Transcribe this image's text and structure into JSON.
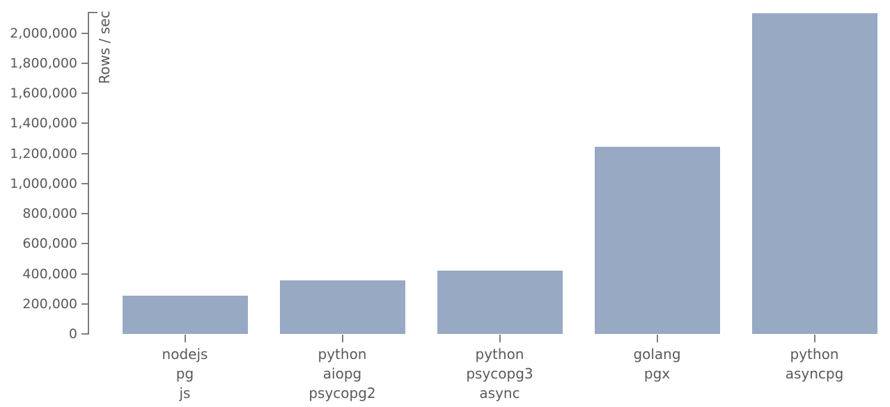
{
  "chart_data": {
    "type": "bar",
    "title": "",
    "xlabel": "",
    "ylabel": "Rows / sec",
    "grid": false,
    "legend": false,
    "ylim": [
      0,
      2141000
    ],
    "yticks": [
      {
        "value": 0,
        "label": "0"
      },
      {
        "value": 200000,
        "label": "200,000"
      },
      {
        "value": 400000,
        "label": "400,000"
      },
      {
        "value": 600000,
        "label": "600,000"
      },
      {
        "value": 800000,
        "label": "800,000"
      },
      {
        "value": 1000000,
        "label": "1,000,000"
      },
      {
        "value": 1200000,
        "label": "1,200,000"
      },
      {
        "value": 1400000,
        "label": "1,400,000"
      },
      {
        "value": 1600000,
        "label": "1,600,000"
      },
      {
        "value": 1800000,
        "label": "1,800,000"
      },
      {
        "value": 2000000,
        "label": "2,000,000"
      }
    ],
    "categories": [
      {
        "lines": [
          "nodejs",
          "pg",
          "js"
        ]
      },
      {
        "lines": [
          "python",
          "aiopg",
          "psycopg2"
        ]
      },
      {
        "lines": [
          "python",
          "psycopg3",
          "async"
        ]
      },
      {
        "lines": [
          "golang",
          "pgx"
        ]
      },
      {
        "lines": [
          "python",
          "asyncpg"
        ]
      }
    ],
    "values": [
      254000,
      356000,
      420000,
      1244000,
      2132000
    ],
    "colors": {
      "bar": "#98a9c4",
      "axis": "#7e7e7e",
      "text": "#595959",
      "background": "#ffffff"
    }
  }
}
